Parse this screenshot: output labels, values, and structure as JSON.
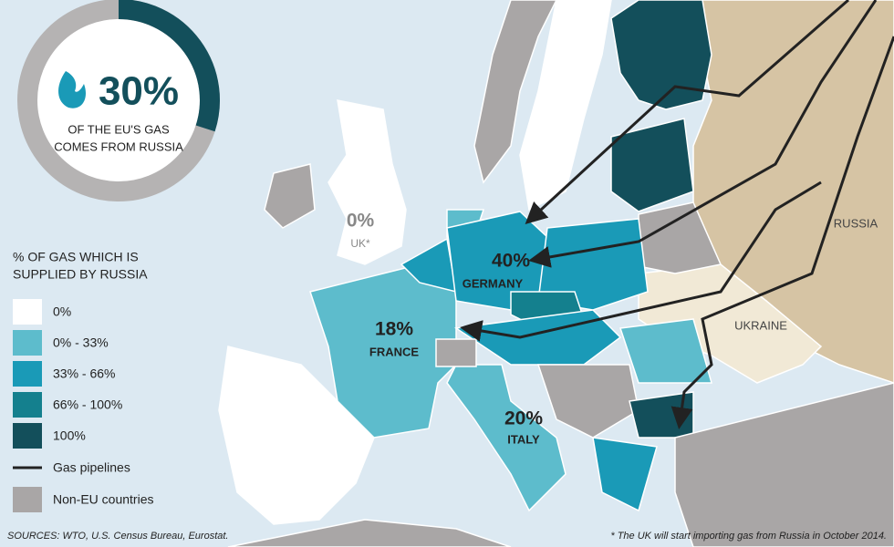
{
  "stat": {
    "value": 30,
    "value_label": "30%",
    "caption": [
      "OF THE EU'S GAS",
      "COMES FROM RUSSIA"
    ]
  },
  "legend": {
    "title": [
      "% OF GAS WHICH IS",
      "SUPPLIED BY RUSSIA"
    ],
    "items": [
      {
        "label": "0%",
        "color": "#ffffff"
      },
      {
        "label": "0% - 33%",
        "color": "#5dbccc"
      },
      {
        "label": "33% - 66%",
        "color": "#1a9ab7"
      },
      {
        "label": "66% - 100%",
        "color": "#14808e"
      },
      {
        "label": "100%",
        "color": "#134f5b"
      }
    ],
    "pipelines": "Gas pipelines",
    "non_eu": "Non-EU countries"
  },
  "countries": [
    {
      "value": "40%",
      "name": "GERMANY"
    },
    {
      "value": "18%",
      "name": "FRANCE"
    },
    {
      "value": "20%",
      "name": "ITALY"
    },
    {
      "value": "0%",
      "name": "UK*"
    }
  ],
  "regions": [
    "RUSSIA",
    "UKRAINE"
  ],
  "sources": "SOURCES: WTO, U.S. Census Bureau, Eurostat.",
  "footnote": "* The UK will start importing gas from Russia in October 2014."
}
